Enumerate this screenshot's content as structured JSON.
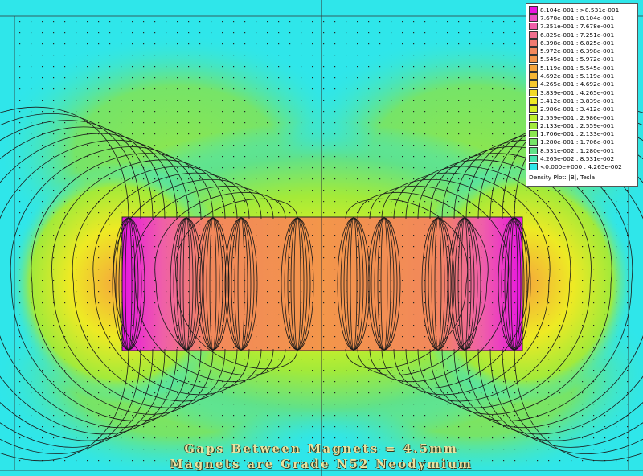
{
  "legend": {
    "entries": [
      {
        "label": "8.104e-001 : >8.531e-001",
        "color": "#e815e0"
      },
      {
        "label": "7.678e-001 : 8.104e-001",
        "color": "#ec4dc4"
      },
      {
        "label": "7.251e-001 : 7.678e-001",
        "color": "#ef5fa9"
      },
      {
        "label": "6.825e-001 : 7.251e-001",
        "color": "#f06f8e"
      },
      {
        "label": "6.398e-001 : 6.825e-001",
        "color": "#f07b72"
      },
      {
        "label": "5.972e-001 : 6.398e-001",
        "color": "#f2885b"
      },
      {
        "label": "5.545e-001 : 5.972e-001",
        "color": "#f3964a"
      },
      {
        "label": "5.119e-001 : 5.545e-001",
        "color": "#f5a53c"
      },
      {
        "label": "4.692e-001 : 5.119e-001",
        "color": "#f6b634"
      },
      {
        "label": "4.265e-001 : 4.692e-001",
        "color": "#f6c82e"
      },
      {
        "label": "3.839e-001 : 4.265e-001",
        "color": "#f4da28"
      },
      {
        "label": "3.412e-001 : 3.839e-001",
        "color": "#eeea24"
      },
      {
        "label": "2.986e-001 : 3.412e-001",
        "color": "#d8f025"
      },
      {
        "label": "2.559e-001 : 2.986e-001",
        "color": "#bdee2c"
      },
      {
        "label": "2.133e-001 : 2.559e-001",
        "color": "#a2ea3a"
      },
      {
        "label": "1.706e-001 : 2.133e-001",
        "color": "#8be64f"
      },
      {
        "label": "1.280e-001 : 1.706e-001",
        "color": "#76e468"
      },
      {
        "label": "8.531e-002 : 1.280e-001",
        "color": "#61e288"
      },
      {
        "label": "4.265e-002 : 8.531e-002",
        "color": "#47e4b0"
      },
      {
        "label": "<0.000e+000 : 4.265e-002",
        "color": "#2fe6ea"
      }
    ],
    "title": "Density Plot: |B|, Tesla"
  },
  "caption": {
    "line1": "Gaps Between Magnets = 4.5mm",
    "line2": "Magnets are Grade N52 Neodymium"
  },
  "colors": {
    "background": "#2fe6ea",
    "field_line": "#1a1a1a",
    "caption_text": "#e8e3a0"
  }
}
